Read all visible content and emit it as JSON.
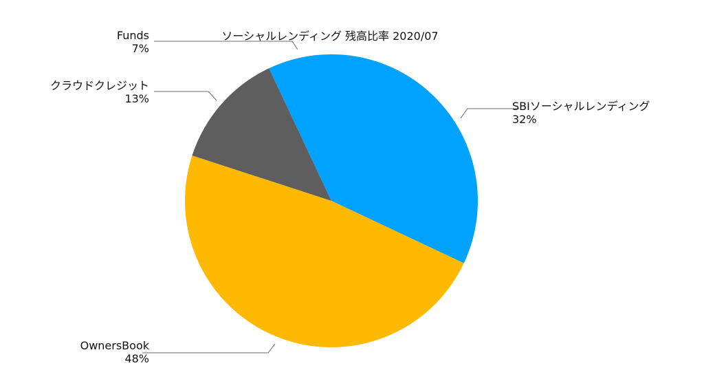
{
  "chart_data": {
    "type": "pie",
    "title": "ソーシャルレンディング 残高比率 2020/07",
    "series": [
      {
        "categories": [
          "SBIソーシャルレンディング",
          "OwnersBook",
          "クラウドクレジット",
          "Funds"
        ],
        "values": [
          32,
          48,
          13,
          7
        ],
        "labels": [
          "32%",
          "48%",
          "13%",
          "7%"
        ],
        "colors": [
          "#00a2ff",
          "#ffb900",
          "#5e5e5e",
          "#00a2ff"
        ]
      }
    ],
    "legend": "none",
    "slice_labels": "outside with leader lines"
  }
}
